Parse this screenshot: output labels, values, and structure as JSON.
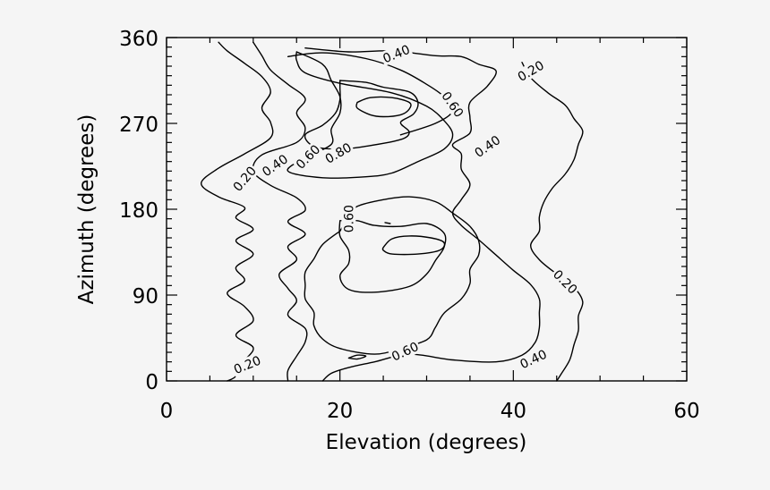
{
  "chart_data": {
    "type": "contour",
    "title": "",
    "xlabel": "Elevation (degrees)",
    "ylabel": "Azimuth (degrees)",
    "xlim": [
      0,
      60
    ],
    "ylim": [
      0,
      360
    ],
    "x_ticks": [
      "0",
      "20",
      "40",
      "60"
    ],
    "y_ticks": [
      "0",
      "90",
      "180",
      "270",
      "360"
    ],
    "x_tick_values": [
      0,
      20,
      40,
      60
    ],
    "y_tick_values": [
      0,
      90,
      180,
      270,
      360
    ],
    "x_minor_step": 5,
    "y_minor_step": 10,
    "grid": false,
    "levels": [
      0.2,
      0.4,
      0.6,
      0.8
    ],
    "contour_labels": [
      {
        "text": "0.40",
        "x": 26.5,
        "y": 343,
        "angle": -22
      },
      {
        "text": "0.20",
        "x": 42.0,
        "y": 325,
        "angle": -30
      },
      {
        "text": "0.60",
        "x": 33.0,
        "y": 290,
        "angle": 55
      },
      {
        "text": "0.40",
        "x": 37.0,
        "y": 246,
        "angle": -35
      },
      {
        "text": "0.20",
        "x": 9.0,
        "y": 212,
        "angle": -50
      },
      {
        "text": "0.40",
        "x": 12.5,
        "y": 226,
        "angle": -35
      },
      {
        "text": "0.60",
        "x": 16.3,
        "y": 235,
        "angle": -45
      },
      {
        "text": "0.80",
        "x": 19.8,
        "y": 239,
        "angle": -30
      },
      {
        "text": "0.60",
        "x": 21.0,
        "y": 170,
        "angle": -90
      },
      {
        "text": "0.20",
        "x": 46.0,
        "y": 104,
        "angle": 45
      },
      {
        "text": "0.60",
        "x": 27.5,
        "y": 31,
        "angle": -25
      },
      {
        "text": "0.40",
        "x": 42.3,
        "y": 23,
        "angle": -25
      },
      {
        "text": "0.20",
        "x": 9.3,
        "y": 17,
        "angle": -22
      }
    ],
    "contours": [
      {
        "level": 0.2,
        "points": [
          [
            6,
            355
          ],
          [
            7,
            346
          ],
          [
            9,
            333
          ],
          [
            11,
            319
          ],
          [
            12,
            303
          ],
          [
            11,
            286
          ],
          [
            12,
            271
          ],
          [
            12,
            255
          ],
          [
            9,
            238
          ],
          [
            6,
            223
          ],
          [
            4,
            207
          ],
          [
            6,
            193
          ],
          [
            9,
            182
          ],
          [
            8,
            171
          ],
          [
            10,
            159
          ],
          [
            8,
            147
          ],
          [
            10,
            133
          ],
          [
            8,
            119
          ],
          [
            9,
            105
          ],
          [
            7,
            92
          ],
          [
            9,
            78
          ],
          [
            10,
            63
          ],
          [
            8,
            48
          ],
          [
            10,
            35
          ],
          [
            9,
            21
          ],
          [
            8,
            5
          ],
          [
            7,
            0
          ]
        ]
      },
      {
        "level": 0.2,
        "points": [
          [
            41,
            334
          ],
          [
            42,
            318
          ],
          [
            44,
            302
          ],
          [
            46,
            289
          ],
          [
            47,
            275
          ],
          [
            48,
            262
          ],
          [
            47.5,
            248
          ],
          [
            47,
            232
          ],
          [
            46,
            217
          ],
          [
            44.5,
            202
          ],
          [
            43.5,
            187
          ],
          [
            43,
            172
          ],
          [
            43,
            157
          ],
          [
            42,
            142
          ],
          [
            43,
            127
          ],
          [
            45,
            112
          ],
          [
            47,
            98
          ],
          [
            48,
            83
          ],
          [
            47.5,
            68
          ],
          [
            47.5,
            53
          ],
          [
            47,
            38
          ],
          [
            46.5,
            22
          ],
          [
            45.5,
            7
          ],
          [
            45,
            0
          ]
        ]
      },
      {
        "level": 0.4,
        "points": [
          [
            10,
            355
          ],
          [
            11,
            341
          ],
          [
            12,
            326
          ],
          [
            14,
            311
          ],
          [
            16,
            296
          ],
          [
            15,
            281
          ],
          [
            16,
            265
          ],
          [
            15,
            250
          ],
          [
            11,
            237
          ],
          [
            10,
            220
          ],
          [
            12,
            205
          ],
          [
            15,
            192
          ],
          [
            16,
            179
          ],
          [
            14,
            167
          ],
          [
            16,
            154
          ],
          [
            14,
            141
          ],
          [
            15,
            127
          ],
          [
            13,
            112
          ],
          [
            14,
            97
          ],
          [
            15,
            84
          ],
          [
            14,
            69
          ],
          [
            16,
            55
          ],
          [
            16,
            41
          ],
          [
            15,
            26
          ],
          [
            14,
            11
          ],
          [
            14,
            0
          ]
        ]
      },
      {
        "level": 0.4,
        "points": [
          [
            16,
            349
          ],
          [
            21,
            345
          ],
          [
            26,
            346
          ],
          [
            31,
            341
          ],
          [
            34,
            340
          ],
          [
            36,
            332
          ],
          [
            38,
            325
          ],
          [
            37,
            309
          ],
          [
            35,
            292
          ],
          [
            35,
            276
          ],
          [
            35,
            260
          ],
          [
            33,
            248
          ],
          [
            34,
            238
          ],
          [
            34,
            222
          ],
          [
            35,
            206
          ],
          [
            34,
            190
          ],
          [
            33,
            176
          ],
          [
            34,
            163
          ],
          [
            36,
            148
          ],
          [
            38,
            132
          ],
          [
            40,
            116
          ],
          [
            42,
            101
          ],
          [
            43,
            86
          ],
          [
            43,
            71
          ],
          [
            43,
            56
          ],
          [
            42.5,
            40
          ],
          [
            41,
            27
          ],
          [
            38,
            20
          ],
          [
            33,
            22
          ],
          [
            28,
            28
          ],
          [
            24,
            20
          ],
          [
            21,
            14
          ],
          [
            19,
            8
          ],
          [
            18,
            0
          ]
        ]
      },
      {
        "level": 0.6,
        "points": [
          [
            15,
            345
          ],
          [
            18,
            332
          ],
          [
            19,
            315
          ],
          [
            20,
            298
          ],
          [
            20,
            281
          ],
          [
            19,
            264
          ],
          [
            19,
            248
          ],
          [
            16,
            234
          ],
          [
            14,
            220
          ],
          [
            18,
            213
          ],
          [
            23,
            214
          ],
          [
            26,
            218
          ],
          [
            29,
            230
          ],
          [
            32,
            243
          ],
          [
            33,
            258
          ],
          [
            32,
            273
          ],
          [
            30,
            288
          ],
          [
            26,
            302
          ],
          [
            20,
            312
          ],
          [
            16,
            323
          ],
          [
            15,
            336
          ],
          [
            15,
            345
          ]
        ]
      },
      {
        "level": 0.6,
        "points": [
          [
            14,
            340
          ],
          [
            18,
            344
          ],
          [
            23,
            338
          ],
          [
            27,
            326
          ],
          [
            30,
            311
          ],
          [
            32,
            298
          ],
          [
            33,
            283
          ],
          [
            31,
            270
          ],
          [
            27,
            258
          ]
        ]
      },
      {
        "level": 0.6,
        "points": [
          [
            20,
            157
          ],
          [
            21,
            172
          ],
          [
            22,
            183
          ],
          [
            25,
            190
          ],
          [
            28,
            193
          ],
          [
            31,
            188
          ],
          [
            33,
            176
          ],
          [
            35,
            162
          ],
          [
            36,
            147
          ],
          [
            36,
            132
          ],
          [
            35,
            117
          ],
          [
            35,
            102
          ],
          [
            34,
            86
          ],
          [
            32,
            71
          ],
          [
            31,
            56
          ],
          [
            30,
            43
          ],
          [
            27,
            34
          ],
          [
            24,
            28
          ],
          [
            20,
            34
          ],
          [
            18,
            44
          ],
          [
            17,
            58
          ],
          [
            17,
            72
          ],
          [
            16,
            86
          ],
          [
            16,
            100
          ],
          [
            16,
            114
          ],
          [
            17,
            128
          ],
          [
            18,
            143
          ],
          [
            20,
            157
          ]
        ]
      },
      {
        "level": 0.8,
        "points": [
          [
            20,
            315
          ],
          [
            23,
            313
          ],
          [
            25,
            308
          ],
          [
            28,
            303
          ],
          [
            29,
            292
          ],
          [
            28.5,
            280
          ],
          [
            27,
            271
          ],
          [
            28,
            261
          ],
          [
            27,
            253
          ],
          [
            23,
            246
          ],
          [
            20,
            243
          ],
          [
            17,
            246
          ],
          [
            16,
            258
          ],
          [
            18,
            268
          ],
          [
            19.5,
            281
          ],
          [
            20,
            295
          ],
          [
            20,
            307
          ],
          [
            20,
            315
          ]
        ]
      },
      {
        "level": 0.8,
        "points": [
          [
            20,
            168
          ],
          [
            22,
            168
          ],
          [
            24,
            163
          ],
          [
            27,
            162
          ],
          [
            30,
            165
          ],
          [
            32,
            155
          ],
          [
            32,
            140
          ],
          [
            31,
            126
          ],
          [
            30,
            112
          ],
          [
            28,
            99
          ],
          [
            24,
            93
          ],
          [
            21,
            96
          ],
          [
            20,
            110
          ],
          [
            21,
            123
          ],
          [
            21,
            137
          ],
          [
            20,
            152
          ],
          [
            20,
            168
          ]
        ]
      },
      {
        "level": 0.8,
        "points": [
          [
            22,
            292
          ],
          [
            23.5,
            297
          ],
          [
            26,
            297
          ],
          [
            28,
            292
          ],
          [
            28,
            285
          ],
          [
            27,
            279
          ],
          [
            25,
            277
          ],
          [
            23.5,
            279
          ],
          [
            22,
            286
          ],
          [
            22,
            292
          ]
        ]
      },
      {
        "level": 0.8,
        "points": [
          [
            25.2,
            166
          ],
          [
            25.8,
            165
          ]
        ]
      },
      {
        "level": 0.8,
        "points": [
          [
            25,
            140
          ],
          [
            26,
            149
          ],
          [
            28,
            152
          ],
          [
            30.5,
            150
          ],
          [
            32,
            145
          ],
          [
            31.5,
            137
          ],
          [
            29,
            133
          ],
          [
            26,
            133
          ],
          [
            25,
            137
          ],
          [
            25,
            140
          ]
        ]
      },
      {
        "level": 0.8,
        "points": [
          [
            21,
            24
          ],
          [
            22,
            27
          ],
          [
            23,
            26
          ],
          [
            22,
            23
          ],
          [
            21,
            24
          ]
        ]
      }
    ]
  }
}
